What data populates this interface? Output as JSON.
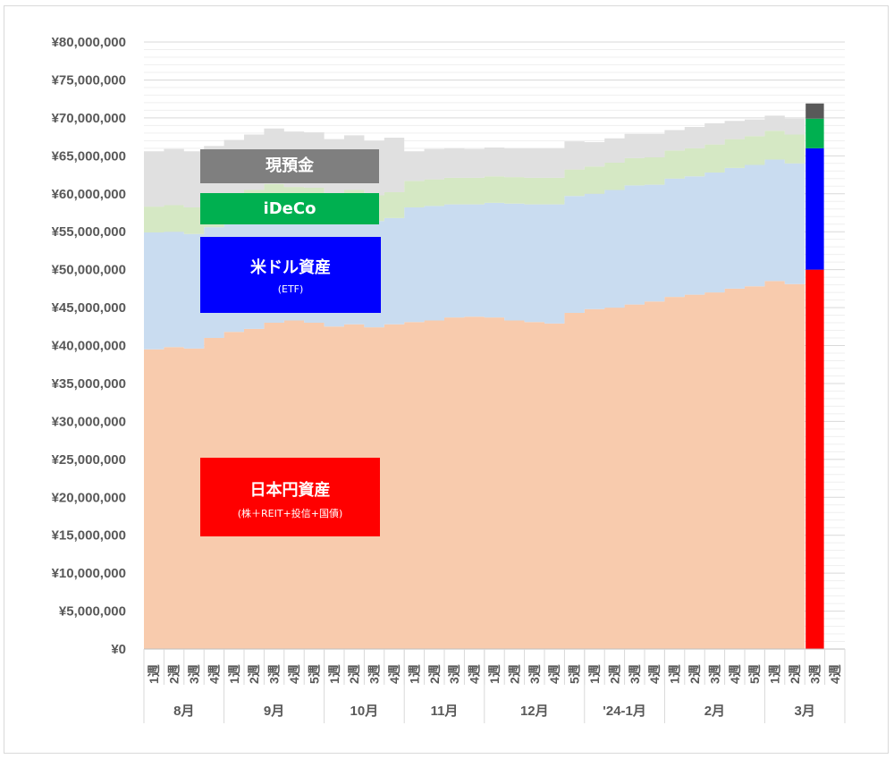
{
  "chart_data": {
    "type": "area",
    "y_axis": {
      "min": 0,
      "max": 80000000,
      "step": 5000000,
      "tick_labels": [
        "¥0",
        "¥5,000,000",
        "¥10,000,000",
        "¥15,000,000",
        "¥20,000,000",
        "¥25,000,000",
        "¥30,000,000",
        "¥35,000,000",
        "¥40,000,000",
        "¥45,000,000",
        "¥50,000,000",
        "¥55,000,000",
        "¥60,000,000",
        "¥65,000,000",
        "¥70,000,000",
        "¥75,000,000",
        "¥80,000,000"
      ]
    },
    "x_labels": [
      "1週",
      "2週",
      "3週",
      "4週",
      "1週",
      "2週",
      "3週",
      "4週",
      "5週",
      "1週",
      "2週",
      "3週",
      "4週",
      "1週",
      "2週",
      "3週",
      "4週",
      "1週",
      "2週",
      "3週",
      "4週",
      "5週",
      "1週",
      "2週",
      "3週",
      "4週",
      "1週",
      "2週",
      "3週",
      "4週",
      "5週",
      "1週",
      "2週",
      "3週",
      "4週"
    ],
    "months": [
      {
        "label": "8月",
        "weeks": 4
      },
      {
        "label": "9月",
        "weeks": 5
      },
      {
        "label": "10月",
        "weeks": 4
      },
      {
        "label": "11月",
        "weeks": 4
      },
      {
        "label": "12月",
        "weeks": 5
      },
      {
        "label": "'24-1月",
        "weeks": 4
      },
      {
        "label": "2月",
        "weeks": 5
      },
      {
        "label": "3月",
        "weeks": 4
      }
    ],
    "series": [
      {
        "name": "日本円資産",
        "color": "#f8cbad",
        "values": [
          39500000,
          39800000,
          39600000,
          41000000,
          41800000,
          42200000,
          43000000,
          43300000,
          43000000,
          42500000,
          42800000,
          42400000,
          42800000,
          43100000,
          43300000,
          43700000,
          43800000,
          43700000,
          43300000,
          43100000,
          42900000,
          44300000,
          44800000,
          45000000,
          45400000,
          45800000,
          46400000,
          46700000,
          47000000,
          47500000,
          47800000,
          48500000,
          48100000
        ]
      },
      {
        "name": "米ドル資産",
        "color": "#c9dcf0",
        "values": [
          15400000,
          15200000,
          15100000,
          14600000,
          14600000,
          14800000,
          14800000,
          14200000,
          14400000,
          14100000,
          14300000,
          14000000,
          14000000,
          15100000,
          15100000,
          14900000,
          14800000,
          15100000,
          15400000,
          15500000,
          15700000,
          15400000,
          15200000,
          15500000,
          15700000,
          15400000,
          15600000,
          15600000,
          15800000,
          15900000,
          16000000,
          16000000,
          15900000
        ]
      },
      {
        "name": "iDeCo",
        "color": "#d5e8c4",
        "values": [
          3400000,
          3500000,
          3500000,
          3400000,
          3400000,
          3500000,
          3500000,
          3400000,
          3400000,
          3400000,
          3400000,
          3400000,
          3400000,
          3500000,
          3500000,
          3500000,
          3500000,
          3500000,
          3500000,
          3500000,
          3500000,
          3500000,
          3600000,
          3600000,
          3600000,
          3600000,
          3700000,
          3700000,
          3700000,
          3800000,
          3800000,
          3800000,
          3800000
        ]
      },
      {
        "name": "現預金",
        "color": "#e0e0e0",
        "values": [
          7300000,
          7400000,
          7400000,
          7300000,
          7300000,
          7300000,
          7300000,
          7300000,
          7300000,
          7200000,
          7200000,
          7200000,
          7200000,
          3900000,
          4000000,
          3900000,
          3800000,
          3800000,
          3800000,
          3900000,
          3900000,
          3700000,
          3200000,
          3200000,
          3200000,
          3100000,
          2700000,
          2800000,
          2800000,
          2400000,
          2200000,
          2000000,
          2100000
        ]
      }
    ],
    "highlight_bar": {
      "x_index": 33,
      "segments": [
        {
          "name": "日本円資産",
          "value": 50000000,
          "color": "#ff0000"
        },
        {
          "name": "米ドル資産",
          "value": 16000000,
          "color": "#0000ff"
        },
        {
          "name": "iDeCo",
          "value": 3900000,
          "color": "#00b050"
        },
        {
          "name": "現預金",
          "value": 2000000,
          "color": "#595959"
        }
      ]
    },
    "grid": true,
    "legend_position": "inside-left"
  },
  "legend": {
    "cash": {
      "label": "現預金",
      "color": "#7f7f7f"
    },
    "ideco": {
      "label": "iDeCo",
      "color": "#00b050"
    },
    "usd": {
      "label": "米ドル資産",
      "sub": "(ETF)",
      "color": "#0000ff"
    },
    "jpy": {
      "label": "日本円資産",
      "sub": "(株＋REIT+投信+国債)",
      "color": "#ff0000"
    }
  }
}
